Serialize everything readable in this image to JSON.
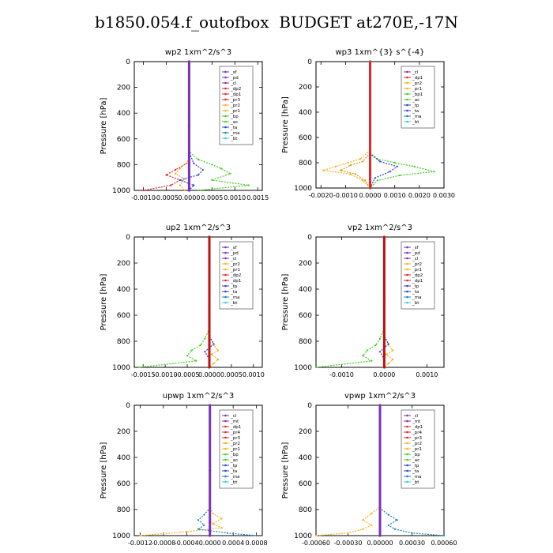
{
  "title": "b1850.054.f_outofbox  BUDGET at270E,-17N",
  "colors": {
    "sf": "#7b2fbe",
    "pd": "#7b2fbe",
    "cl": "#7b2fbe",
    "mt": "#7b2fbe",
    "dp2": "#e8262a",
    "dp1": "#e8262a",
    "pr4": "#e8262a",
    "pr3": "#e8262a",
    "pr2": "#f5b21a",
    "pr1": "#f5b21a",
    "bp": "#40d020",
    "bp1": "#40d020",
    "ac": "#40d020",
    "tp": "#3040d0",
    "ta": "#3040d0",
    "ma": "#2080c0",
    "bt": "#30d0d0"
  },
  "chart_data": [
    {
      "type": "line",
      "title": "wp2   1xm^2/s^3",
      "ylabel": "Pressure [hPa]",
      "ylim": [
        1000,
        0
      ],
      "yticks": [
        "0",
        "200",
        "400",
        "600",
        "800",
        "1000"
      ],
      "xlim": [
        -0.0012,
        0.0016
      ],
      "xticks": [
        -0.001,
        -0.0005,
        0.0,
        0.0005,
        0.001,
        0.0015
      ],
      "xticklabels": [
        "-0.0010",
        "-0.0005",
        "0.0000",
        "0.0005",
        "0.0010",
        "0.0015"
      ],
      "legend": [
        "_sf",
        "_pd",
        "_cl",
        "_dp2",
        "_dp1",
        "_pr3",
        "_pr2",
        "_pr1",
        "_bp",
        "_ac",
        "_ta",
        "_ma",
        "_bt"
      ],
      "series": [
        {
          "name": "_dp1",
          "color": "#e8262a",
          "x": [
            0,
            0,
            0,
            -0.0003,
            -0.0005,
            -0.0002,
            -0.0004,
            -0.001
          ],
          "y": [
            0,
            700,
            780,
            840,
            880,
            920,
            960,
            1000
          ]
        },
        {
          "name": "_pr2",
          "color": "#f5b21a",
          "x": [
            0,
            0,
            -0.0002,
            -0.0003,
            -0.0001,
            -0.0002,
            -0.0001
          ],
          "y": [
            0,
            760,
            830,
            870,
            910,
            960,
            1000
          ]
        },
        {
          "name": "_bp",
          "color": "#40d020",
          "x": [
            0,
            0,
            0.0002,
            0.0005,
            0.0007,
            0.0009,
            0.0005,
            0.0013,
            0.0002
          ],
          "y": [
            0,
            700,
            760,
            800,
            830,
            870,
            920,
            960,
            1000
          ]
        },
        {
          "name": "_ta",
          "color": "#3040d0",
          "x": [
            0,
            0,
            0.0001,
            0.0003,
            0.0002,
            -0.0002,
            0.0001,
            0
          ],
          "y": [
            0,
            700,
            790,
            840,
            880,
            920,
            960,
            1000
          ]
        },
        {
          "name": "_sf",
          "color": "#7b2fbe",
          "x": [
            0,
            0,
            0,
            0
          ],
          "y": [
            0,
            500,
            900,
            1000
          ]
        }
      ]
    },
    {
      "type": "line",
      "title": "wp3   1xm^{3} s^{-4}",
      "ylabel": "Pressure [hPa]",
      "ylim": [
        1000,
        0
      ],
      "yticks": [
        "0",
        "200",
        "400",
        "600",
        "800",
        "1000"
      ],
      "xlim": [
        -0.0022,
        0.003
      ],
      "xticks": [
        -0.002,
        -0.001,
        0.0,
        0.001,
        0.002,
        0.003
      ],
      "xticklabels": [
        "-0.0020",
        "-0.0010",
        "0.0000",
        "0.0010",
        "0.0020",
        "0.0030"
      ],
      "legend": [
        "_cl",
        "_dp1",
        "_pr2",
        "_pr1",
        "_bp1",
        "_ac",
        "_tp",
        "_ta",
        "_ma",
        "_bt"
      ],
      "series": [
        {
          "name": "_pr2",
          "color": "#f5b21a",
          "x": [
            0,
            0,
            -0.0004,
            -0.0009,
            -0.0014,
            -0.0019,
            -0.0008,
            -0.0003,
            0
          ],
          "y": [
            0,
            700,
            770,
            800,
            830,
            860,
            890,
            940,
            1000
          ]
        },
        {
          "name": "_pr1",
          "color": "#e89020",
          "x": [
            0,
            0,
            -0.0003,
            -0.0008,
            -0.0012,
            -0.0006,
            -0.0002,
            0
          ],
          "y": [
            0,
            720,
            790,
            820,
            860,
            890,
            940,
            1000
          ]
        },
        {
          "name": "_bp1",
          "color": "#40d020",
          "x": [
            0,
            0,
            0.0003,
            0.001,
            0.0018,
            0.0026,
            0.0012,
            0.0003,
            0
          ],
          "y": [
            0,
            720,
            770,
            800,
            830,
            870,
            900,
            940,
            1000
          ]
        },
        {
          "name": "_ta",
          "color": "#3040d0",
          "x": [
            0,
            0,
            0.0004,
            0.0011,
            0.0008,
            0.0002,
            0
          ],
          "y": [
            0,
            730,
            790,
            830,
            870,
            920,
            1000
          ]
        },
        {
          "name": "_cl",
          "color": "#e8262a",
          "x": [
            0,
            0,
            0,
            0
          ],
          "y": [
            0,
            500,
            900,
            1000
          ]
        }
      ]
    },
    {
      "type": "line",
      "title": "up2   1xm^2/s^3",
      "ylabel": "Pressure [hPa]",
      "ylim": [
        1000,
        0
      ],
      "yticks": [
        "0",
        "200",
        "400",
        "600",
        "800",
        "1000"
      ],
      "xlim": [
        -0.0017,
        0.0012
      ],
      "xticks": [
        -0.0015,
        -0.001,
        -0.0005,
        0.0,
        0.0005,
        0.001
      ],
      "xticklabels": [
        "-0.0015",
        "-0.0010",
        "-0.0005",
        "0.0000",
        "0.0005",
        "0.0010"
      ],
      "legend": [
        "_sf",
        "_pd",
        "_cl",
        "_pr2",
        "_pr1",
        "_dp2",
        "_dp1",
        "_tp",
        "_ta",
        "_ma",
        "_bt"
      ],
      "series": [
        {
          "name": "_dp2",
          "color": "#40d020",
          "x": [
            0,
            0,
            -0.0001,
            -0.0002,
            -0.0004,
            -0.0005,
            -0.0003,
            -0.0016
          ],
          "y": [
            0,
            700,
            780,
            830,
            870,
            910,
            950,
            1000
          ]
        },
        {
          "name": "_pr2",
          "color": "#f5b21a",
          "x": [
            0,
            0,
            0.0001,
            0.0002,
            5e-05,
            0.0002,
            0.0001,
            0
          ],
          "y": [
            0,
            760,
            830,
            870,
            900,
            940,
            970,
            1000
          ]
        },
        {
          "name": "_ta",
          "color": "#3040d0",
          "x": [
            0,
            0,
            0.0001,
            -0.0001,
            0,
            0
          ],
          "y": [
            0,
            760,
            820,
            880,
            940,
            1000
          ]
        },
        {
          "name": "_cl",
          "color": "#c01010",
          "x": [
            0,
            0,
            0,
            0
          ],
          "y": [
            0,
            500,
            900,
            1000
          ]
        }
      ]
    },
    {
      "type": "line",
      "title": "vp2   1xm^2/s^3",
      "ylabel": "Pressure [hPa]",
      "ylim": [
        1000,
        0
      ],
      "yticks": [
        "0",
        "200",
        "400",
        "600",
        "800",
        "1000"
      ],
      "xlim": [
        -0.0016,
        0.0014
      ],
      "xticks": [
        -0.001,
        0.0,
        0.001
      ],
      "xticklabels": [
        "-0.0010",
        "0.0000",
        "0.0010"
      ],
      "legend": [
        "_sf",
        "_pd",
        "_cl",
        "_pr2",
        "_pr1",
        "_dp2",
        "_dp1",
        "_tp",
        "_ta",
        "_ma",
        "_bt"
      ],
      "series": [
        {
          "name": "_dp2",
          "color": "#40d020",
          "x": [
            0,
            0,
            -0.0001,
            -0.0002,
            -0.0004,
            -0.0005,
            -0.0003,
            -0.0016
          ],
          "y": [
            0,
            700,
            780,
            830,
            870,
            910,
            950,
            1000
          ]
        },
        {
          "name": "_pr2",
          "color": "#f5b21a",
          "x": [
            0,
            0,
            0.0001,
            0.0002,
            5e-05,
            0.0002,
            0.0001,
            0
          ],
          "y": [
            0,
            760,
            830,
            870,
            900,
            940,
            970,
            1000
          ]
        },
        {
          "name": "_ta",
          "color": "#3040d0",
          "x": [
            0,
            0,
            0.0001,
            -0.0001,
            0,
            0
          ],
          "y": [
            0,
            760,
            820,
            880,
            940,
            1000
          ]
        },
        {
          "name": "_cl",
          "color": "#c01010",
          "x": [
            0,
            0,
            0,
            0
          ],
          "y": [
            0,
            500,
            900,
            1000
          ]
        }
      ]
    },
    {
      "type": "line",
      "title": "upwp   1xm^2/s^3",
      "ylabel": "Pressure [hPa]",
      "ylim": [
        1000,
        0
      ],
      "yticks": [
        "0",
        "200",
        "400",
        "600",
        "800",
        "1000"
      ],
      "xlim": [
        -0.0013,
        0.0009
      ],
      "xticks": [
        -0.0012,
        -0.0008,
        -0.0004,
        0.0,
        0.0004,
        0.0008
      ],
      "xticklabels": [
        "-0.0012",
        "-0.0008",
        "-0.0004",
        "0.0000",
        "0.0004",
        "0.0008"
      ],
      "legend": [
        "_cl",
        "_mt",
        "_dp1",
        "_pr4",
        "_pr3",
        "_pr2",
        "_pr1",
        "_bp",
        "_ac",
        "_tp",
        "_ta",
        "_ma",
        "_bt"
      ],
      "series": [
        {
          "name": "_pr2",
          "color": "#f5b21a",
          "x": [
            0,
            0,
            5e-05,
            0.0002,
            5e-05,
            0.0002,
            -0.0004,
            -0.0012
          ],
          "y": [
            0,
            780,
            830,
            870,
            910,
            940,
            970,
            1000
          ]
        },
        {
          "name": "_tp",
          "color": "#2080c0",
          "x": [
            0,
            0,
            -0.0001,
            -0.0002,
            -0.0001,
            -0.0002,
            0.0003,
            0.0008
          ],
          "y": [
            0,
            790,
            840,
            880,
            920,
            950,
            980,
            1000
          ]
        },
        {
          "name": "_cl",
          "color": "#7b2fbe",
          "x": [
            0,
            0,
            0,
            0
          ],
          "y": [
            0,
            500,
            900,
            1000
          ]
        }
      ]
    },
    {
      "type": "line",
      "title": "vpwp   1xm^2/s^3",
      "ylabel": "Pressure [hPa]",
      "ylim": [
        1000,
        0
      ],
      "yticks": [
        "0",
        "200",
        "400",
        "600",
        "800",
        "1000"
      ],
      "xlim": [
        -0.0006,
        0.0006
      ],
      "xticks": [
        -0.0006,
        -0.0003,
        0.0,
        0.0003,
        0.0006
      ],
      "xticklabels": [
        "-0.00060",
        "-0.00030",
        "0.00000",
        "0.00030",
        "0.00060"
      ],
      "legend": [
        "_cl",
        "_mt",
        "_dp1",
        "_pr4",
        "_pr3",
        "_pr2",
        "_pr1",
        "_bp",
        "_ac",
        "_tp",
        "_ta",
        "_ma",
        "_bt"
      ],
      "series": [
        {
          "name": "_pr2",
          "color": "#f5b21a",
          "x": [
            0,
            0,
            -8e-05,
            -0.00016,
            -8e-05,
            -0.00016,
            -0.0003,
            -0.0006
          ],
          "y": [
            0,
            780,
            830,
            880,
            920,
            950,
            980,
            1000
          ]
        },
        {
          "name": "_tp",
          "color": "#2080c0",
          "x": [
            0,
            0,
            8e-05,
            0.00016,
            8e-05,
            0.00014,
            0.0003,
            0.0006
          ],
          "y": [
            0,
            790,
            840,
            880,
            920,
            950,
            980,
            1000
          ]
        },
        {
          "name": "_cl",
          "color": "#7b2fbe",
          "x": [
            0,
            0,
            0,
            0
          ],
          "y": [
            0,
            500,
            900,
            1000
          ]
        }
      ]
    }
  ]
}
